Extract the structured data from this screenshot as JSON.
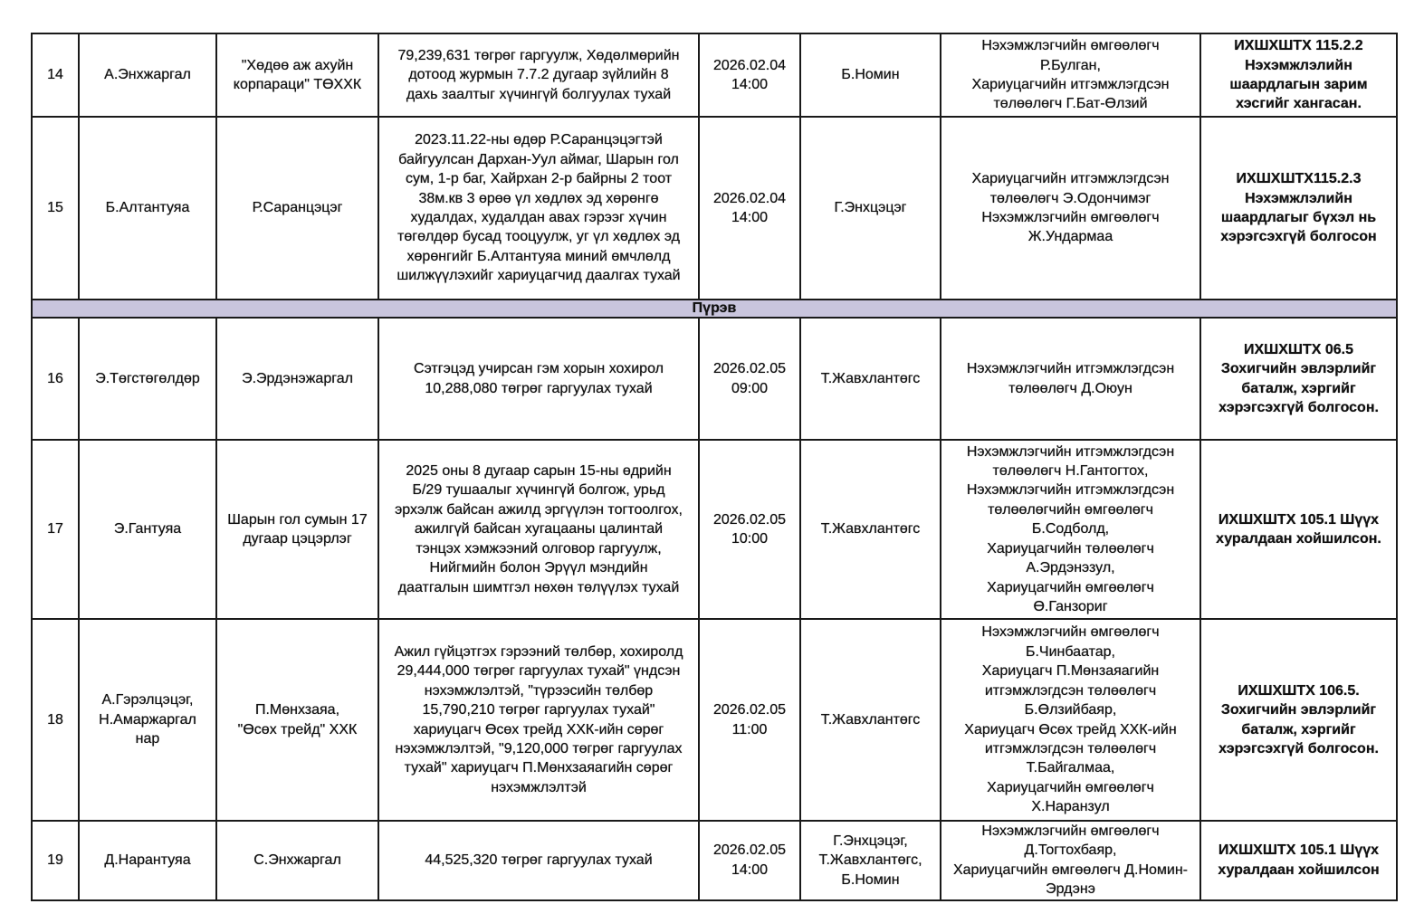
{
  "section_label": "Пүрэв",
  "rows": [
    {
      "no": "14",
      "plaintiff": "А.Энхжаргал",
      "defendant": "\"Хөдөө аж ахуйн\nкорпараци\" ТӨХХК",
      "claim": "79,239,631 төгрөг гаргуулж, Хөдөлмөрийн\nдотоод журмын 7.7.2 дугаар зүйлийн 8\nдахь заалтыг хүчингүй болгуулах тухай",
      "datetime": "2026.02.04\n14:00",
      "judge": "Б.Номин",
      "participants": "Нэхэмжлэгчийн өмгөөлөгч\nР.Булган,\nХариуцагчийн итгэмжлэгдсэн\nтөлөөлөгч Г.Бат-Өлзий",
      "result": "ИХШХШТХ 115.2.2\nНэхэмжлэлийн\nшаардлагын зарим\nхэсгийг хангасан."
    },
    {
      "no": "15",
      "plaintiff": "Б.Алтантуяа",
      "defendant": "Р.Саранцэцэг",
      "claim": "2023.11.22-ны өдөр Р.Саранцэцэгтэй\nбайгуулсан Дархан-Уул аймаг, Шарын гол\nсум, 1-р баг, Хайрхан 2-р байрны 2 тоот\n38м.кв 3 өрөө үл хөдлөх эд хөрөнгө\nхудалдах, худалдан авах гэрээг хүчин\nтөгөлдөр бусад тооцуулж, уг үл хөдлөх эд\nхөрөнгийг Б.Алтантуяа миний өмчлөлд\nшилжүүлэхийг хариуцагчид даалгах тухай",
      "datetime": "2026.02.04\n14:00",
      "judge": "Г.Энхцэцэг",
      "participants": "Хариуцагчийн итгэмжлэгдсэн\nтөлөөлөгч Э.Одончимэг\nНэхэмжлэгчийн өмгөөлөгч\nЖ.Ундармаа",
      "result": "ИХШХШТХ115.2.3\nНэхэмжлэлийн\nшаардлагыг бүхэл нь\nхэрэгсэхгүй болгосон"
    },
    {
      "no": "16",
      "plaintiff": "Э.Төгстөгөлдөр",
      "defendant": "Э.Эрдэнэжаргал",
      "claim": "Сэтгэцэд учирсан гэм хорын хохирол\n10,288,080 төгрөг гаргуулах тухай",
      "datetime": "2026.02.05\n09:00",
      "judge": "Т.Жавхлантөгс",
      "participants": "Нэхэмжлэгчийн итгэмжлэгдсэн\nтөлөөлөгч Д.Оюун",
      "result": "ИХШХШТХ 06.5\nЗохигчийн эвлэрлийг\nбаталж, хэргийг\nхэрэгсэхгүй болгосон."
    },
    {
      "no": "17",
      "plaintiff": "Э.Гантуяа",
      "defendant": "Шарын гол сумын 17\nдугаар цэцэрлэг",
      "claim": "2025 оны 8 дугаар сарын 15-ны өдрийн\nБ/29 тушаалыг хүчингүй болгож, урьд\nэрхэлж байсан ажилд эргүүлэн тогтоолгох,\nажилгүй байсан хугацааны цалинтай\nтэнцэх хэмжээний олговор гаргуулж,\nНийгмийн болон Эрүүл мэндийн\nдаатгалын шимтгэл нөхөн төлүүлэх тухай",
      "datetime": "2026.02.05\n10:00",
      "judge": "Т.Жавхлантөгс",
      "participants": "Нэхэмжлэгчийн итгэмжлэгдсэн\nтөлөөлөгч Н.Гантогтох,\nНэхэмжлэгчийн итгэмжлэгдсэн\nтөлөөлөгчийн өмгөөлөгч\nБ.Содболд,\nХариуцагчийн төлөөлөгч\nА.Эрдэнэзул,\nХариуцагчийн өмгөөлөгч\nӨ.Ганзориг",
      "result": "ИХШХШТХ 105.1 Шүүх\nхуралдаан хойшилсон."
    },
    {
      "no": "18",
      "plaintiff": "А.Гэрэлцэцэг,\nН.Амаржаргал\nнар",
      "defendant": "П.Мөнхзаяа,\n\"Өсөх трейд\" ХХК",
      "claim": "Ажил гүйцэтгэх гэрээний төлбөр, хохиролд\n29,444,000 төгрөг гаргуулах тухай\" үндсэн\nнэхэмжлэлтэй, \"түрээсийн төлбөр\n15,790,210 төгрөг гаргуулах тухай\"\nхариуцагч Өсөх трейд ХХК-ийн сөрөг\nнэхэмжлэлтэй, \"9,120,000 төгрөг гаргуулах\nтухай\" хариуцагч П.Мөнхзаяагийн сөрөг\nнэхэмжлэлтэй",
      "datetime": "2026.02.05\n11:00",
      "judge": "Т.Жавхлантөгс",
      "participants": "Нэхэмжлэгчийн өмгөөлөгч\nБ.Чинбаатар,\nХариуцагч П.Мөнзаяагийн\nитгэмжлэгдсэн төлөөлөгч\nБ.Өлзийбаяр,\nХариуцагч Өсөх трейд ХХК-ийн\nитгэмжлэгдсэн төлөөлөгч\nТ.Байгалмаа,\nХариуцагчийн өмгөөлөгч\nХ.Наранзул",
      "result": "ИХШХШТХ 106.5.\nЗохигчийн эвлэрлийг\nбаталж, хэргийг\nхэрэгсэхгүй болгосон."
    },
    {
      "no": "19",
      "plaintiff": "Д.Нарантуяа",
      "defendant": "С.Энхжаргал",
      "claim": "44,525,320 төгрөг гаргуулах тухай",
      "datetime": "2026.02.05\n14:00",
      "judge": "Г.Энхцэцэг,\nТ.Жавхлантөгс,\nБ.Номин",
      "participants": "Нэхэмжлэгчийн өмгөөлөгч\nД.Тогтохбаяр,\nХариуцагчийн өмгөөлөгч Д.Номин-\nЭрдэнэ",
      "result": "ИХШХШТХ 105.1 Шүүх\nхуралдаан хойшилсон"
    }
  ]
}
